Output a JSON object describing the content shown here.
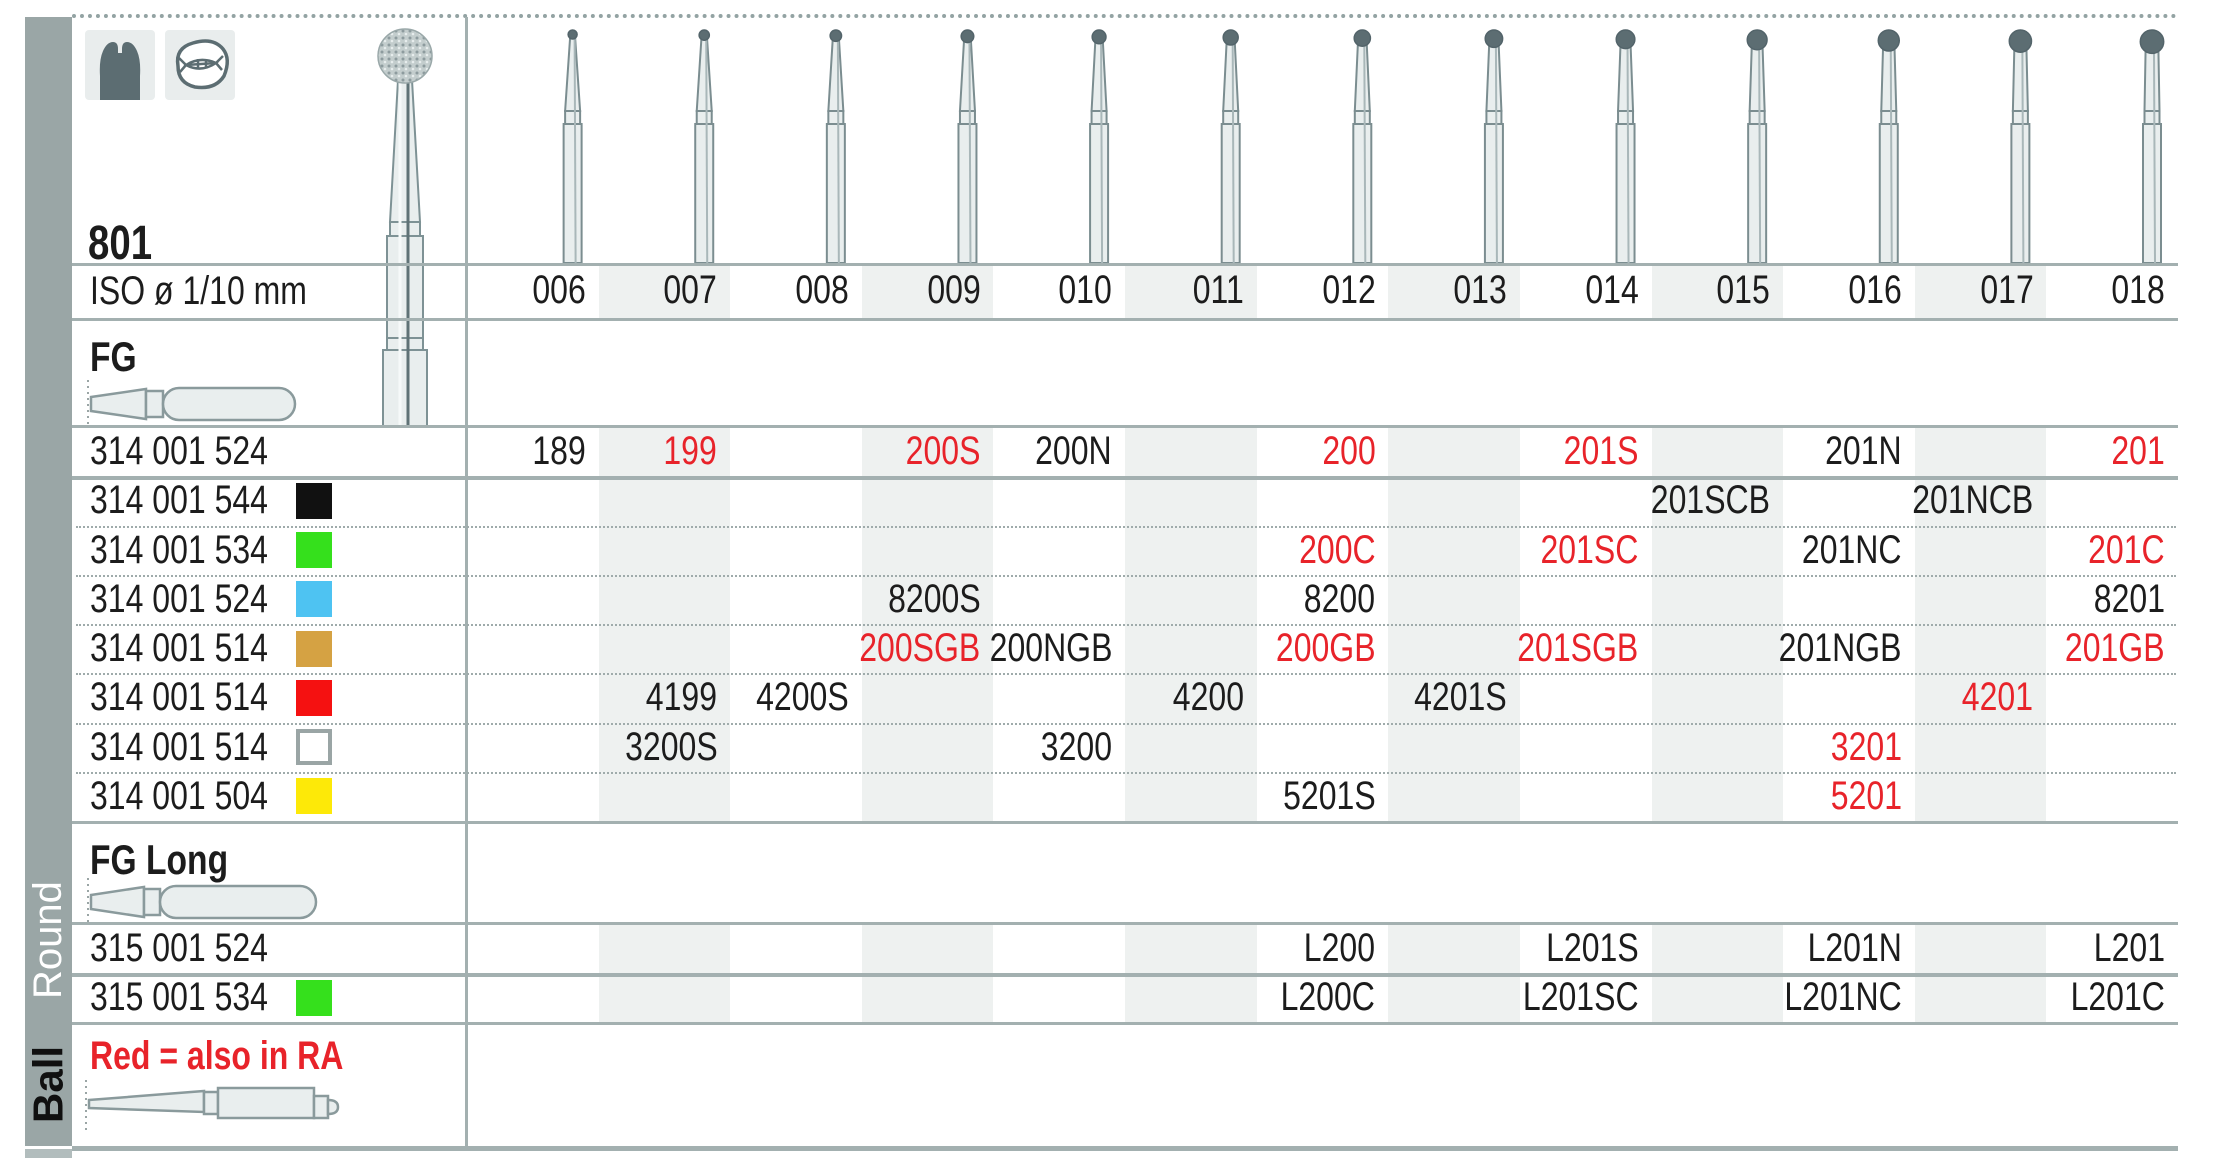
{
  "header": {
    "title": "801",
    "iso_label": "ISO ø 1/10 mm"
  },
  "sidebar": {
    "round_label": "Round",
    "ball_label": "Ball"
  },
  "icons": {
    "tooth_front": "molar-front-icon",
    "tooth_occlusal": "tooth-occlusal-icon"
  },
  "columns": [
    "006",
    "007",
    "008",
    "009",
    "010",
    "011",
    "012",
    "013",
    "014",
    "015",
    "016",
    "017",
    "018"
  ],
  "colors": {
    "red_text": "#e8232a",
    "stripe": "#eef1f0",
    "border": "#a3b0b0",
    "sidebar": "#9aa6a6",
    "bur_head": "#5c6d72",
    "swatch": {
      "black": "#111111",
      "green": "#35e01c",
      "blue": "#4ec3f2",
      "gold": "#d5a243",
      "red": "#f51111",
      "white": "#ffffff",
      "yellow": "#fde908"
    }
  },
  "sections": [
    {
      "label": "FG",
      "rows": [
        {
          "code": "314 001 524",
          "swatch": null,
          "cells": [
            {
              "col": "006",
              "text": "189",
              "red": false
            },
            {
              "col": "007",
              "text": "199",
              "red": true
            },
            {
              "col": "009",
              "text": "200S",
              "red": true
            },
            {
              "col": "010",
              "text": "200N",
              "red": false
            },
            {
              "col": "012",
              "text": "200",
              "red": true
            },
            {
              "col": "014",
              "text": "201S",
              "red": true
            },
            {
              "col": "016",
              "text": "201N",
              "red": false
            },
            {
              "col": "018",
              "text": "201",
              "red": true
            }
          ]
        },
        {
          "code": "314 001 544",
          "swatch": "black",
          "cells": [
            {
              "col": "015",
              "text": "201SCB",
              "red": false
            },
            {
              "col": "017",
              "text": "201NCB",
              "red": false
            }
          ]
        },
        {
          "code": "314 001 534",
          "swatch": "green",
          "cells": [
            {
              "col": "012",
              "text": "200C",
              "red": true
            },
            {
              "col": "014",
              "text": "201SC",
              "red": true
            },
            {
              "col": "016",
              "text": "201NC",
              "red": false
            },
            {
              "col": "018",
              "text": "201C",
              "red": true
            }
          ]
        },
        {
          "code": "314 001 524",
          "swatch": "blue",
          "cells": [
            {
              "col": "009",
              "text": "8200S",
              "red": false
            },
            {
              "col": "012",
              "text": "8200",
              "red": false
            },
            {
              "col": "018",
              "text": "8201",
              "red": false
            }
          ]
        },
        {
          "code": "314 001 514",
          "swatch": "gold",
          "cells": [
            {
              "col": "009",
              "text": "200SGB",
              "red": true
            },
            {
              "col": "010",
              "text": "200NGB",
              "red": false
            },
            {
              "col": "012",
              "text": "200GB",
              "red": true
            },
            {
              "col": "014",
              "text": "201SGB",
              "red": true
            },
            {
              "col": "016",
              "text": "201NGB",
              "red": false
            },
            {
              "col": "018",
              "text": "201GB",
              "red": true
            }
          ]
        },
        {
          "code": "314 001 514",
          "swatch": "red",
          "cells": [
            {
              "col": "007",
              "text": "4199",
              "red": false
            },
            {
              "col": "008",
              "text": "4200S",
              "red": false
            },
            {
              "col": "011",
              "text": "4200",
              "red": false
            },
            {
              "col": "013",
              "text": "4201S",
              "red": false
            },
            {
              "col": "017",
              "text": "4201",
              "red": true
            }
          ]
        },
        {
          "code": "314 001 514",
          "swatch": "white",
          "cells": [
            {
              "col": "007",
              "text": "3200S",
              "red": false
            },
            {
              "col": "010",
              "text": "3200",
              "red": false
            },
            {
              "col": "016",
              "text": "3201",
              "red": true
            }
          ]
        },
        {
          "code": "314 001 504",
          "swatch": "yellow",
          "cells": [
            {
              "col": "012",
              "text": "5201S",
              "red": false
            },
            {
              "col": "016",
              "text": "5201",
              "red": true
            }
          ]
        }
      ]
    },
    {
      "label": "FG Long",
      "rows": [
        {
          "code": "315 001 524",
          "swatch": null,
          "cells": [
            {
              "col": "012",
              "text": "L200",
              "red": false
            },
            {
              "col": "014",
              "text": "L201S",
              "red": false
            },
            {
              "col": "016",
              "text": "L201N",
              "red": false
            },
            {
              "col": "018",
              "text": "L201",
              "red": false
            }
          ]
        },
        {
          "code": "315 001 534",
          "swatch": "green",
          "cells": [
            {
              "col": "012",
              "text": "L200C",
              "red": false
            },
            {
              "col": "014",
              "text": "L201SC",
              "red": false
            },
            {
              "col": "016",
              "text": "L201NC",
              "red": false
            },
            {
              "col": "018",
              "text": "L201C",
              "red": false
            }
          ]
        }
      ]
    }
  ],
  "footer": {
    "note": "Red = also in RA"
  }
}
